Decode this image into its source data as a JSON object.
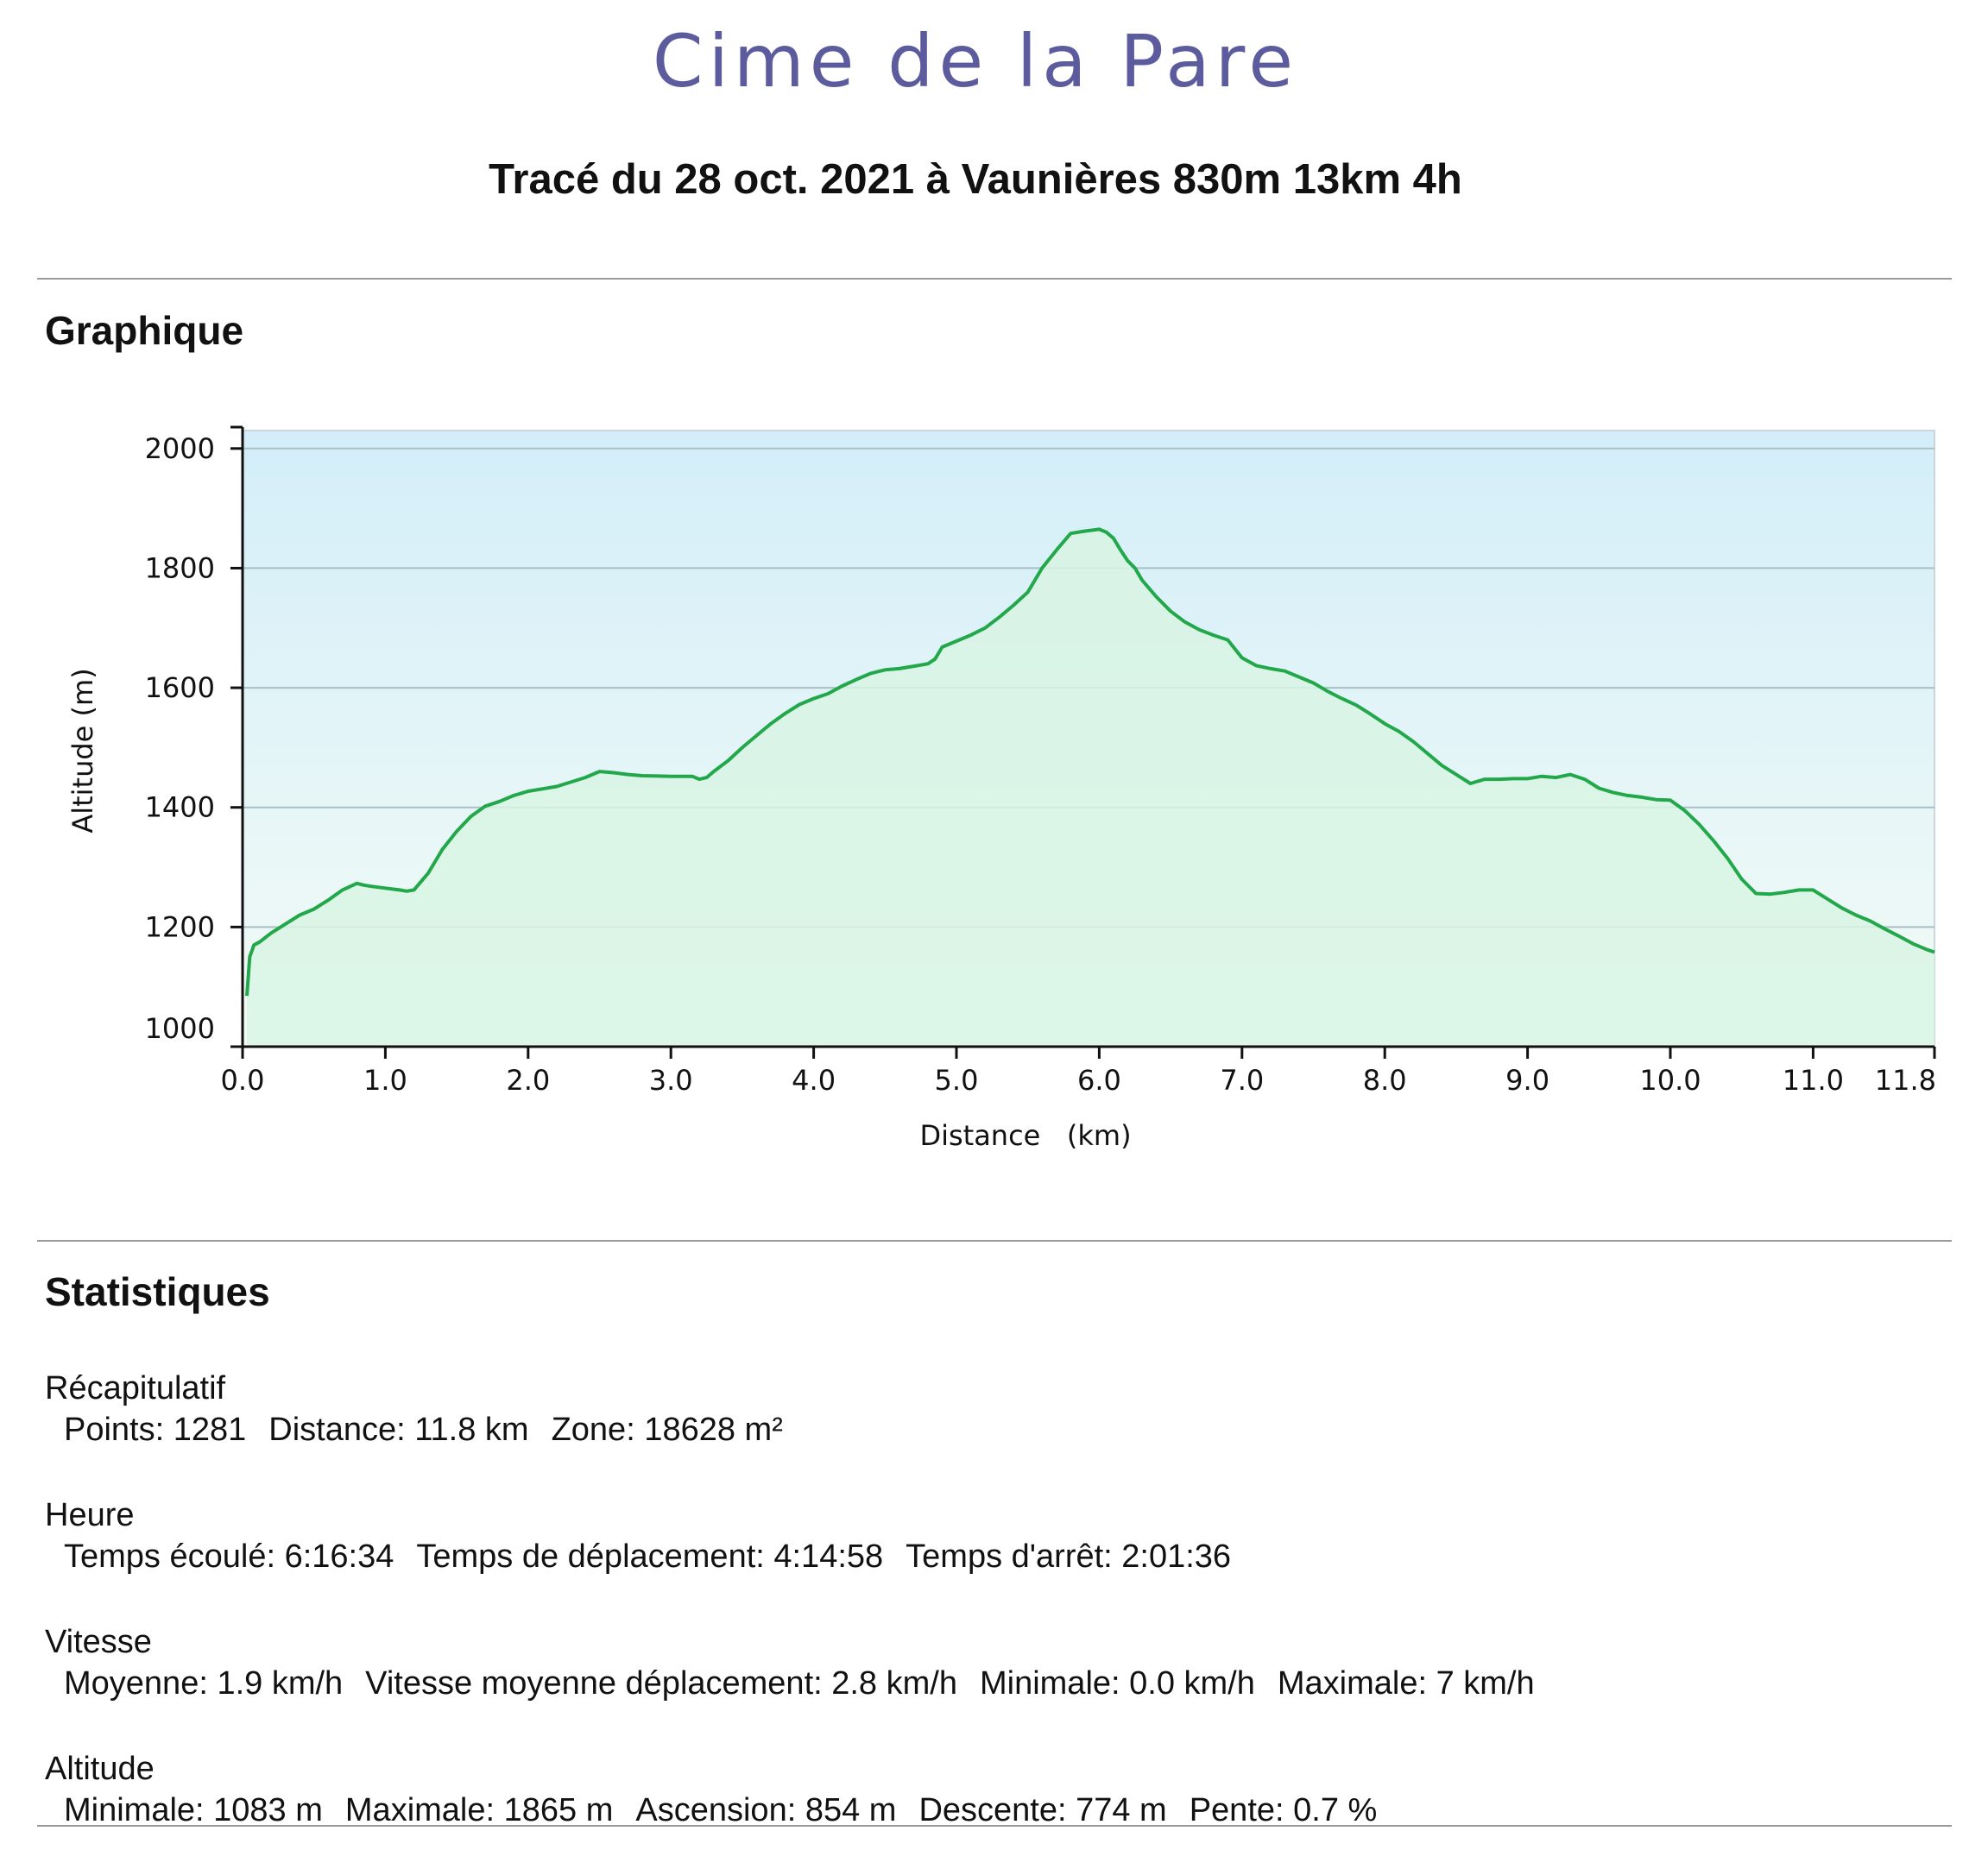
{
  "header": {
    "title": "Cime de la Pare",
    "subtitle": "Tracé du 28 oct. 2021 à  Vaunières 830m 13km 4h"
  },
  "sections": {
    "graph_title": "Graphique",
    "stats_title": "Statistiques"
  },
  "chart_data": {
    "type": "area",
    "xlabel": "Distance   (km)",
    "ylabel": "Altitude (m)",
    "xlim": [
      0,
      11.85
    ],
    "ylim": [
      1000,
      2030
    ],
    "x_ticks": [
      0,
      1,
      2,
      3,
      4,
      5,
      6,
      7,
      8,
      9,
      10,
      11,
      11.85
    ],
    "x_tick_labels": [
      "0.0",
      "1.0",
      "2.0",
      "3.0",
      "4.0",
      "5.0",
      "6.0",
      "7.0",
      "8.0",
      "9.0",
      "10.0",
      "11.0",
      "11.8"
    ],
    "y_ticks": [
      1000,
      1200,
      1400,
      1600,
      1800,
      2000
    ],
    "y_tick_labels": [
      "1000",
      "1200",
      "1400",
      "1600",
      "1800",
      "2000"
    ],
    "grid": "horizontal",
    "line_color": "#22a84a",
    "fill_color": "#d8f4e4",
    "bg_top_color": "#d3eef9",
    "bg_bottom_color": "#f3fbf6",
    "series": [
      {
        "x": [
          0.03,
          0.05,
          0.08,
          0.12,
          0.2,
          0.3,
          0.4,
          0.5,
          0.6,
          0.7,
          0.8,
          0.85,
          0.9,
          1.0,
          1.1,
          1.15,
          1.2,
          1.3,
          1.4,
          1.5,
          1.6,
          1.7,
          1.8,
          1.9,
          2.0,
          2.2,
          2.4,
          2.5,
          2.6,
          2.7,
          2.8,
          3.0,
          3.15,
          3.2,
          3.25,
          3.3,
          3.4,
          3.5,
          3.6,
          3.7,
          3.8,
          3.9,
          4.0,
          4.1,
          4.2,
          4.3,
          4.4,
          4.5,
          4.6,
          4.7,
          4.8,
          4.85,
          4.9,
          5.0,
          5.1,
          5.2,
          5.3,
          5.4,
          5.5,
          5.6,
          5.7,
          5.8,
          5.9,
          6.0,
          6.05,
          6.1,
          6.15,
          6.2,
          6.25,
          6.3,
          6.4,
          6.5,
          6.6,
          6.7,
          6.8,
          6.9,
          7.0,
          7.1,
          7.2,
          7.3,
          7.4,
          7.5,
          7.6,
          7.7,
          7.8,
          7.9,
          8.0,
          8.1,
          8.2,
          8.3,
          8.4,
          8.5,
          8.6,
          8.7,
          8.8,
          8.9,
          9.0,
          9.1,
          9.2,
          9.3,
          9.4,
          9.5,
          9.6,
          9.7,
          9.8,
          9.9,
          10.0,
          10.1,
          10.2,
          10.3,
          10.4,
          10.5,
          10.6,
          10.7,
          10.8,
          10.9,
          11.0,
          11.1,
          11.2,
          11.3,
          11.4,
          11.5,
          11.6,
          11.7,
          11.8,
          11.85
        ],
        "y": [
          1085,
          1150,
          1170,
          1175,
          1190,
          1205,
          1220,
          1230,
          1245,
          1262,
          1273,
          1270,
          1268,
          1265,
          1262,
          1260,
          1262,
          1290,
          1330,
          1360,
          1385,
          1402,
          1410,
          1420,
          1427,
          1435,
          1450,
          1460,
          1458,
          1455,
          1453,
          1452,
          1452,
          1447,
          1450,
          1460,
          1478,
          1500,
          1520,
          1540,
          1557,
          1572,
          1582,
          1590,
          1603,
          1614,
          1624,
          1630,
          1632,
          1636,
          1640,
          1648,
          1668,
          1678,
          1688,
          1700,
          1718,
          1738,
          1760,
          1800,
          1830,
          1858,
          1862,
          1865,
          1860,
          1850,
          1830,
          1812,
          1800,
          1780,
          1752,
          1728,
          1710,
          1697,
          1688,
          1680,
          1650,
          1637,
          1632,
          1628,
          1618,
          1608,
          1594,
          1582,
          1571,
          1556,
          1540,
          1527,
          1510,
          1490,
          1470,
          1455,
          1440,
          1447,
          1447,
          1448,
          1448,
          1452,
          1450,
          1455,
          1447,
          1432,
          1425,
          1420,
          1417,
          1413,
          1412,
          1395,
          1372,
          1345,
          1315,
          1280,
          1256,
          1255,
          1258,
          1262,
          1262,
          1247,
          1232,
          1220,
          1210,
          1197,
          1185,
          1172,
          1162,
          1158
        ]
      }
    ]
  },
  "stats": [
    {
      "heading": "Récapitulatif",
      "items": [
        "Points: 1281",
        "Distance: 11.8 km",
        "Zone: 18628 m²"
      ]
    },
    {
      "heading": "Heure",
      "items": [
        "Temps écoulé: 6:16:34",
        "Temps de déplacement: 4:14:58",
        "Temps d'arrêt: 2:01:36"
      ]
    },
    {
      "heading": "Vitesse",
      "items": [
        "Moyenne: 1.9 km/h",
        "Vitesse moyenne déplacement: 2.8 km/h",
        "Minimale: 0.0 km/h",
        "Maximale: 7 km/h"
      ]
    },
    {
      "heading": "Altitude",
      "items": [
        "Minimale: 1083 m",
        "Maximale: 1865 m",
        "Ascension: 854 m",
        "Descente: 774 m",
        "Pente: 0.7 %"
      ]
    }
  ]
}
